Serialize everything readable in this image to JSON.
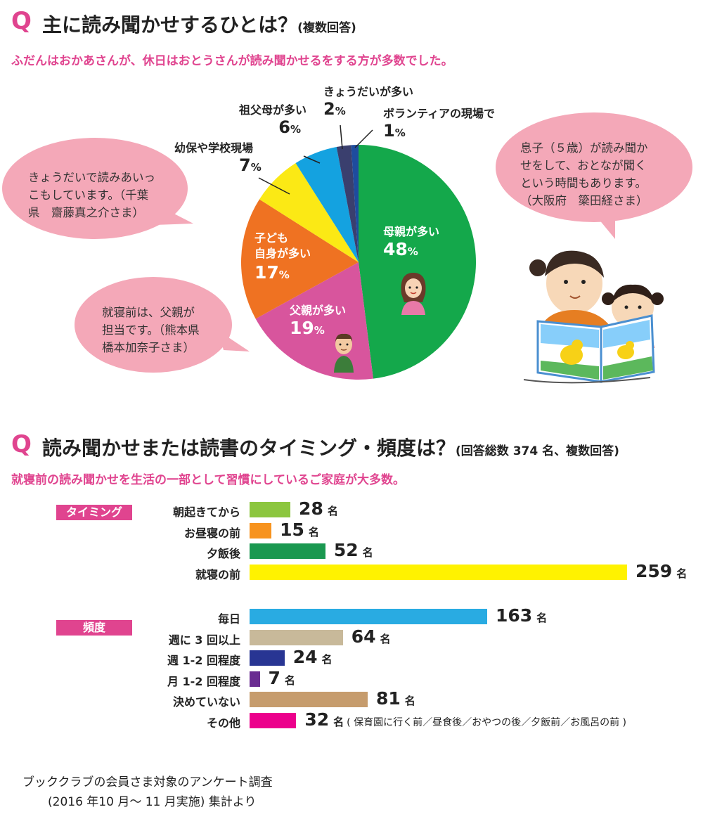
{
  "section1": {
    "q": "Q",
    "title": "主に読み聞かせするひとは？",
    "note": "(複数回答)",
    "subtitle": "ふだんはおかあさんが、休日はおとうさんが読み聞かせるをする方が多数でした。"
  },
  "section2": {
    "q": "Q",
    "title": "読み聞かせまたは読書のタイミング・頻度は？",
    "note": "(回答総数 374 名、複数回答)",
    "subtitle": "就寝前の読み聞かせを生活の一部として習慣にしているご家庭が大多数。"
  },
  "bubbles": {
    "b1": [
      "きょうだいで読みあいっ",
      "こもしています。（千葉",
      "県　齋藤真之介さま）"
    ],
    "b2": [
      "就寝前は、父親が",
      "担当です。（熊本県",
      "橋本加奈子さま）"
    ],
    "b3": [
      "息子（５歳）が読み聞か",
      "せをして、おとなが聞く",
      "という時間もあります。",
      "（大阪府　簗田経さま）"
    ]
  },
  "chart_data": [
    {
      "type": "pie",
      "title": "主に読み聞かせするひとは？",
      "unit": "%",
      "slices": [
        {
          "label": "母親が多い",
          "value": 48,
          "color": "#14a84b"
        },
        {
          "label": "父親が多い",
          "value": 19,
          "color": "#d8559d"
        },
        {
          "label": "子ども自身が多い",
          "value": 17,
          "color": "#ef7222"
        },
        {
          "label": "幼保や学校現場",
          "value": 7,
          "color": "#fbe915"
        },
        {
          "label": "祖父母が多い",
          "value": 6,
          "color": "#14a2e0"
        },
        {
          "label": "きょうだいが多い",
          "value": 2,
          "color": "#3a3f6e"
        },
        {
          "label": "ボランティアの現場で",
          "value": 1,
          "color": "#1e4c9e"
        }
      ]
    },
    {
      "type": "bar",
      "orientation": "horizontal",
      "title": "読み聞かせまたは読書のタイミング・頻度は？",
      "unit": "名",
      "xlim": [
        0,
        259
      ],
      "groups": [
        {
          "name": "タイミング",
          "items": [
            {
              "label": "朝起きてから",
              "value": 28,
              "color": "#8cc63f"
            },
            {
              "label": "お昼寝の前",
              "value": 15,
              "color": "#f7931e"
            },
            {
              "label": "夕飯後",
              "value": 52,
              "color": "#1a9850"
            },
            {
              "label": "就寝の前",
              "value": 259,
              "color": "#fff200"
            }
          ]
        },
        {
          "name": "頻度",
          "items": [
            {
              "label": "毎日",
              "value": 163,
              "color": "#29abe2"
            },
            {
              "label": "週に 3 回以上",
              "value": 64,
              "color": "#c8b99a"
            },
            {
              "label": "週 1-2 回程度",
              "value": 24,
              "color": "#283593"
            },
            {
              "label": "月 1-2 回程度",
              "value": 7,
              "color": "#6a2c91"
            },
            {
              "label": "決めていない",
              "value": 81,
              "color": "#c69c6d"
            },
            {
              "label": "その他",
              "value": 32,
              "color": "#ec008c",
              "note": "( 保育園に行く前／昼食後／おやつの後／夕飯前／お風呂の前 )"
            }
          ]
        }
      ]
    }
  ],
  "footer": {
    "line1": "ブッククラブの会員さま対象のアンケート調査",
    "line2": "(2016 年10 月〜 11 月実施) 集計より"
  }
}
